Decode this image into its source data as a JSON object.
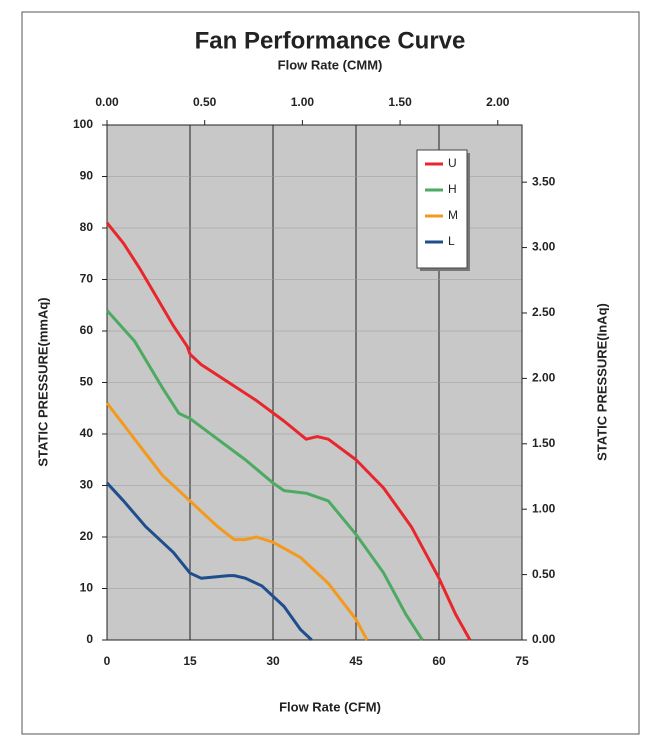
{
  "chart_data": {
    "type": "line",
    "title": "Fan Performance Curve",
    "x2_label": "Flow Rate (CMM)",
    "x_label": "Flow Rate (CFM)",
    "y_label": "STATIC PRESSURE(mmAq)",
    "y2_label": "STATIC PRESSURE(InAq)",
    "xlim": [
      0,
      75
    ],
    "xticks": [
      0,
      15,
      30,
      45,
      60,
      75
    ],
    "x2lim": [
      0,
      2.124
    ],
    "x2ticks": [
      {
        "value": 0,
        "label": "0.00"
      },
      {
        "value": 0.5,
        "label": "0.50"
      },
      {
        "value": 1,
        "label": "1.00"
      },
      {
        "value": 1.5,
        "label": "1.50"
      },
      {
        "value": 2,
        "label": "2.00"
      }
    ],
    "ylim": [
      0,
      100
    ],
    "yticks": [
      0,
      10,
      20,
      30,
      40,
      50,
      60,
      70,
      80,
      90,
      100
    ],
    "y2lim": [
      0,
      3.937
    ],
    "y2ticks": [
      {
        "value": 0,
        "label": "0.00"
      },
      {
        "value": 0.5,
        "label": "0.50"
      },
      {
        "value": 1,
        "label": "1.00"
      },
      {
        "value": 1.5,
        "label": "1.50"
      },
      {
        "value": 2,
        "label": "2.00"
      },
      {
        "value": 2.5,
        "label": "2.50"
      },
      {
        "value": 3,
        "label": "3.00"
      },
      {
        "value": 3.5,
        "label": "3.50"
      }
    ],
    "grid": true,
    "legend": "upper right",
    "series": [
      {
        "name": "U",
        "color": "#e8262c",
        "x": [
          0,
          3,
          6,
          9,
          12,
          14.5,
          15,
          17,
          22,
          27,
          32,
          36,
          38,
          40,
          45,
          50,
          55,
          60,
          63,
          65.6
        ],
        "values": [
          81,
          77,
          72,
          66.5,
          61,
          57,
          55.5,
          53.5,
          50,
          46.5,
          42.5,
          39,
          39.5,
          39,
          35,
          29.5,
          22,
          12,
          5,
          0
        ]
      },
      {
        "name": "H",
        "color": "#4caa62",
        "x": [
          0,
          5,
          10,
          13,
          15,
          20,
          25,
          30,
          32,
          36,
          40,
          45,
          50,
          54,
          57
        ],
        "values": [
          64,
          58,
          49,
          44,
          43,
          39,
          35,
          30.5,
          29,
          28.5,
          27,
          20.5,
          13,
          5,
          0
        ]
      },
      {
        "name": "M",
        "color": "#f39a1e",
        "x": [
          0,
          5,
          10,
          15,
          20,
          23,
          25,
          27,
          30,
          35,
          40,
          45,
          47
        ],
        "values": [
          46,
          39,
          32,
          27,
          22,
          19.5,
          19.5,
          20,
          19,
          16,
          11,
          4,
          0
        ]
      },
      {
        "name": "L",
        "color": "#1f4e8c",
        "x": [
          0,
          3,
          7,
          12,
          15,
          17,
          22,
          23,
          25,
          28,
          32,
          35,
          37
        ],
        "values": [
          30.5,
          27,
          22,
          17,
          13,
          12,
          12.5,
          12.5,
          12,
          10.5,
          6.5,
          2,
          0
        ]
      }
    ]
  }
}
